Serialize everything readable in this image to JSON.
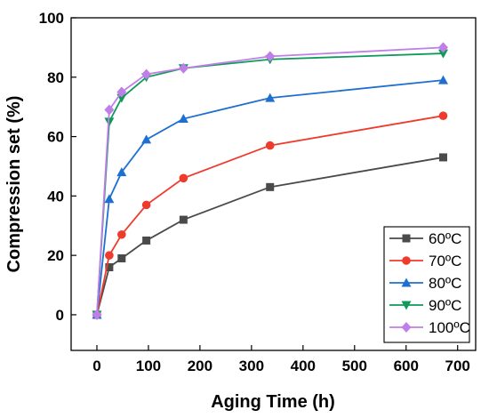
{
  "chart_data": {
    "type": "line",
    "title": "",
    "xlabel": "Aging Time (h)",
    "ylabel": "Compression set (%)",
    "xlim": [
      -50,
      735
    ],
    "ylim": [
      -12,
      100
    ],
    "xticks": [
      0,
      100,
      200,
      300,
      400,
      500,
      600,
      700
    ],
    "yticks": [
      0,
      20,
      40,
      60,
      80,
      100
    ],
    "grid": false,
    "legend_position": "bottom-right",
    "x": [
      0,
      24,
      48,
      96,
      168,
      336,
      672
    ],
    "series": [
      {
        "name": "60ºC",
        "color": "#4a4a4a",
        "marker": "square",
        "values": [
          0,
          16,
          19,
          25,
          32,
          43,
          53
        ]
      },
      {
        "name": "70ºC",
        "color": "#ef3b2c",
        "marker": "circle",
        "values": [
          0,
          20,
          27,
          37,
          46,
          57,
          67
        ]
      },
      {
        "name": "80ºC",
        "color": "#1f6fd1",
        "marker": "triangle-up",
        "values": [
          0,
          39,
          48,
          59,
          66,
          73,
          79
        ]
      },
      {
        "name": "90ºC",
        "color": "#0f9a5a",
        "marker": "triangle-down",
        "values": [
          0,
          65,
          73,
          80,
          83,
          86,
          88
        ]
      },
      {
        "name": "100ºC",
        "color": "#c07ee8",
        "marker": "diamond",
        "values": [
          0,
          69,
          75,
          81,
          83,
          87,
          90
        ]
      }
    ]
  }
}
